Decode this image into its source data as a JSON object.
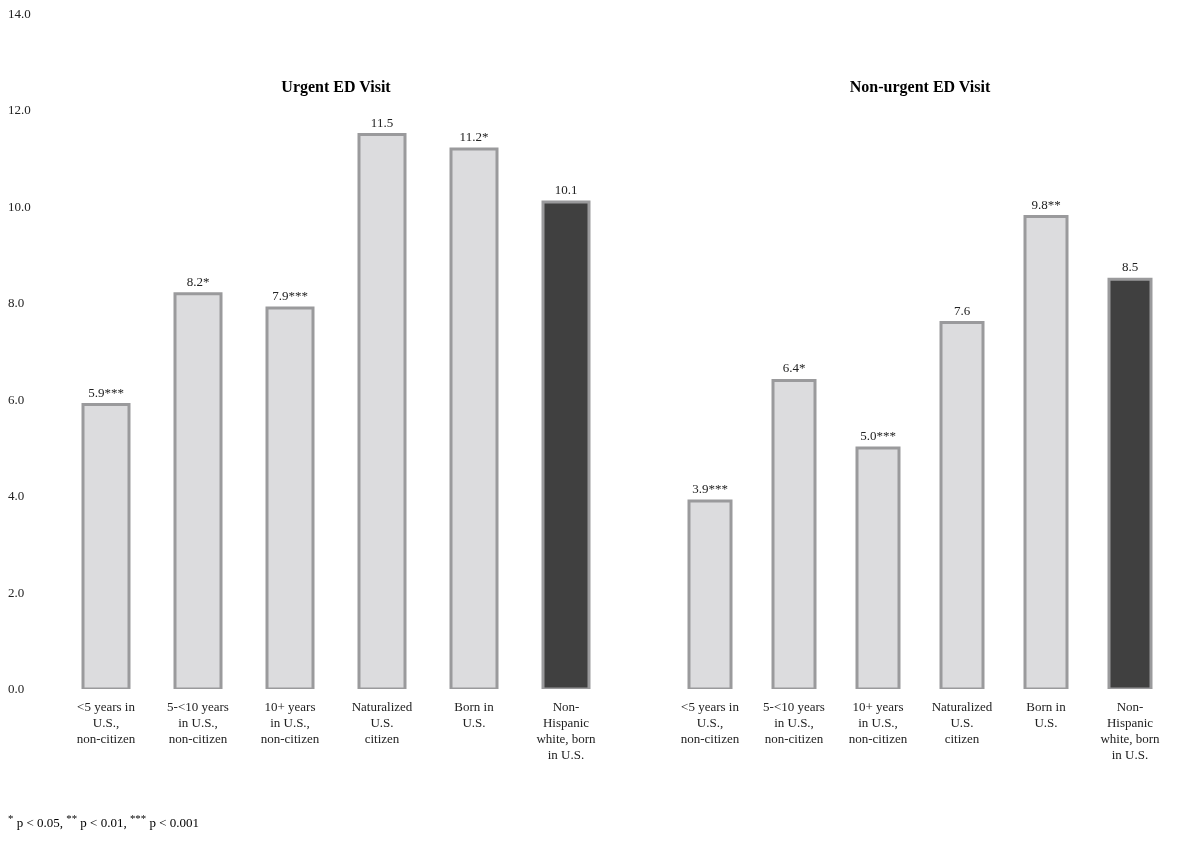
{
  "chart_data": [
    {
      "type": "bar",
      "title": "Urgent ED Visit",
      "categories": [
        "<5 years in U.S., non-citizen",
        "5-<10 years in U.S., non-citizen",
        "10+ years in U.S., non-citizen",
        "Naturalized U.S. citizen",
        "Born in U.S.",
        "Non-Hispanic white, born in U.S."
      ],
      "values": [
        5.9,
        8.2,
        7.9,
        11.5,
        11.2,
        10.1
      ],
      "colors": [
        "#dcdcde",
        "#dcdcde",
        "#dcdcde",
        "#dcdcde",
        "#dcdcde",
        "#404040"
      ],
      "value_labels": [
        "5.9***",
        "8.2*",
        "7.9***",
        "11.5",
        "11.2*",
        "10.1"
      ],
      "ylim": [
        0,
        14
      ],
      "yticks": [
        {
          "value": 0,
          "label": "0.0"
        },
        {
          "value": 2,
          "label": "2.0"
        },
        {
          "value": 4,
          "label": "4.0"
        },
        {
          "value": 6,
          "label": "6.0"
        },
        {
          "value": 8,
          "label": "8.0"
        },
        {
          "value": 10,
          "label": "10.0"
        },
        {
          "value": 12,
          "label": "12.0"
        },
        {
          "value": 14,
          "label": "14.0"
        }
      ],
      "annotations": [
        "$^{*}$ p < 0.05, $^{**}$ p < 0.01, $^{***}$ p < 0.001"
      ]
    },
    {
      "type": "bar",
      "title": "Non-urgent ED Visit",
      "categories": [
        "<5 years in U.S., non-citizen",
        "5-<10 years in U.S., non-citizen",
        "10+ years in U.S., non-citizen",
        "Naturalized U.S. citizen",
        "Born in U.S.",
        "Non-Hispanic white, born in U.S."
      ],
      "values": [
        3.9,
        6.4,
        5.0,
        7.6,
        9.8,
        8.5
      ],
      "colors": [
        "#dcdcde",
        "#dcdcde",
        "#dcdcde",
        "#dcdcde",
        "#dcdcde",
        "#404040"
      ],
      "value_labels": [
        "3.9***",
        "6.4*",
        "5.0***",
        "7.6",
        "9.8**",
        "8.5"
      ],
      "ylim": [
        0,
        14
      ],
      "tick_labels": "x"
    }
  ]
}
